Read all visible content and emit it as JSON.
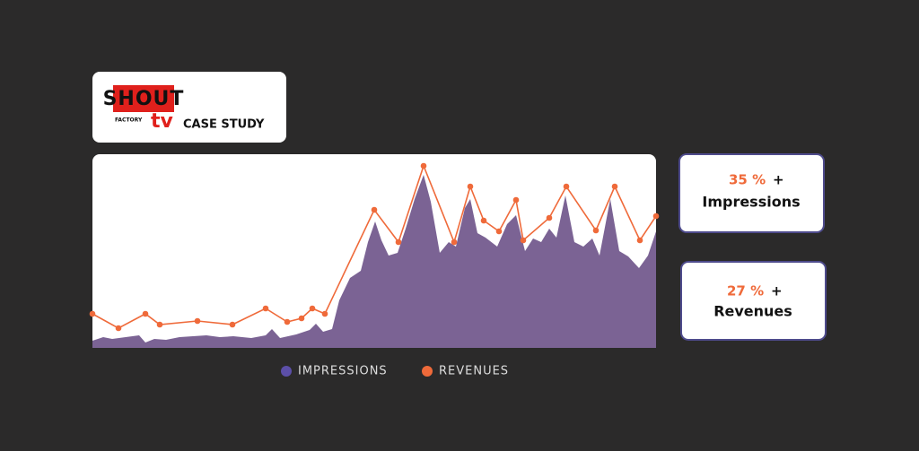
{
  "header": {
    "logo_top": "SHOUT",
    "logo_small": "FACTORY",
    "logo_bottom": "tv",
    "title": "CASE STUDY"
  },
  "stats": [
    {
      "value": "35 %",
      "sign": "+",
      "label": "Impressions"
    },
    {
      "value": "27 %",
      "sign": "+",
      "label": "Revenues"
    }
  ],
  "chart_data": {
    "type": "area-line",
    "xlim": [
      0,
      628
    ],
    "ylim": [
      0,
      216
    ],
    "series": [
      {
        "name": "IMPRESSIONS",
        "color": "#7b6394",
        "legend_color": "#5c4fa8",
        "kind": "area",
        "x": [
          0,
          12,
          22,
          37,
          52,
          59,
          69,
          82,
          97,
          112,
          127,
          142,
          157,
          177,
          193,
          200,
          209,
          227,
          242,
          249,
          257,
          267,
          275,
          287,
          299,
          307,
          315,
          322,
          330,
          340,
          349,
          359,
          369,
          377,
          387,
          397,
          405,
          415,
          421,
          429,
          438,
          451,
          462,
          472,
          482,
          491,
          500,
          509,
          517,
          527,
          537,
          547,
          557,
          565,
          577,
          587,
          597,
          609,
          619,
          628
        ],
        "values": [
          8,
          12,
          10,
          12,
          14,
          6,
          10,
          9,
          12,
          13,
          14,
          12,
          13,
          11,
          14,
          21,
          11,
          15,
          20,
          27,
          18,
          21,
          53,
          78,
          86,
          118,
          141,
          120,
          103,
          106,
          133,
          166,
          193,
          163,
          106,
          118,
          113,
          156,
          166,
          128,
          123,
          113,
          138,
          148,
          108,
          122,
          118,
          133,
          123,
          170,
          118,
          113,
          122,
          103,
          166,
          108,
          102,
          89,
          103,
          130
        ]
      },
      {
        "name": "REVENUES",
        "color": "#ef6a3a",
        "kind": "line",
        "x": [
          0,
          29,
          59,
          75,
          117,
          156,
          193,
          217,
          233,
          245,
          259,
          314,
          341,
          369,
          403,
          421,
          436,
          453,
          472,
          480,
          509,
          528,
          561,
          582,
          610,
          628
        ],
        "values": [
          38,
          22,
          38,
          26,
          30,
          26,
          44,
          29,
          33,
          44,
          38,
          154,
          118,
          203,
          118,
          180,
          142,
          130,
          165,
          120,
          145,
          180,
          131,
          180,
          120,
          147
        ]
      }
    ]
  }
}
